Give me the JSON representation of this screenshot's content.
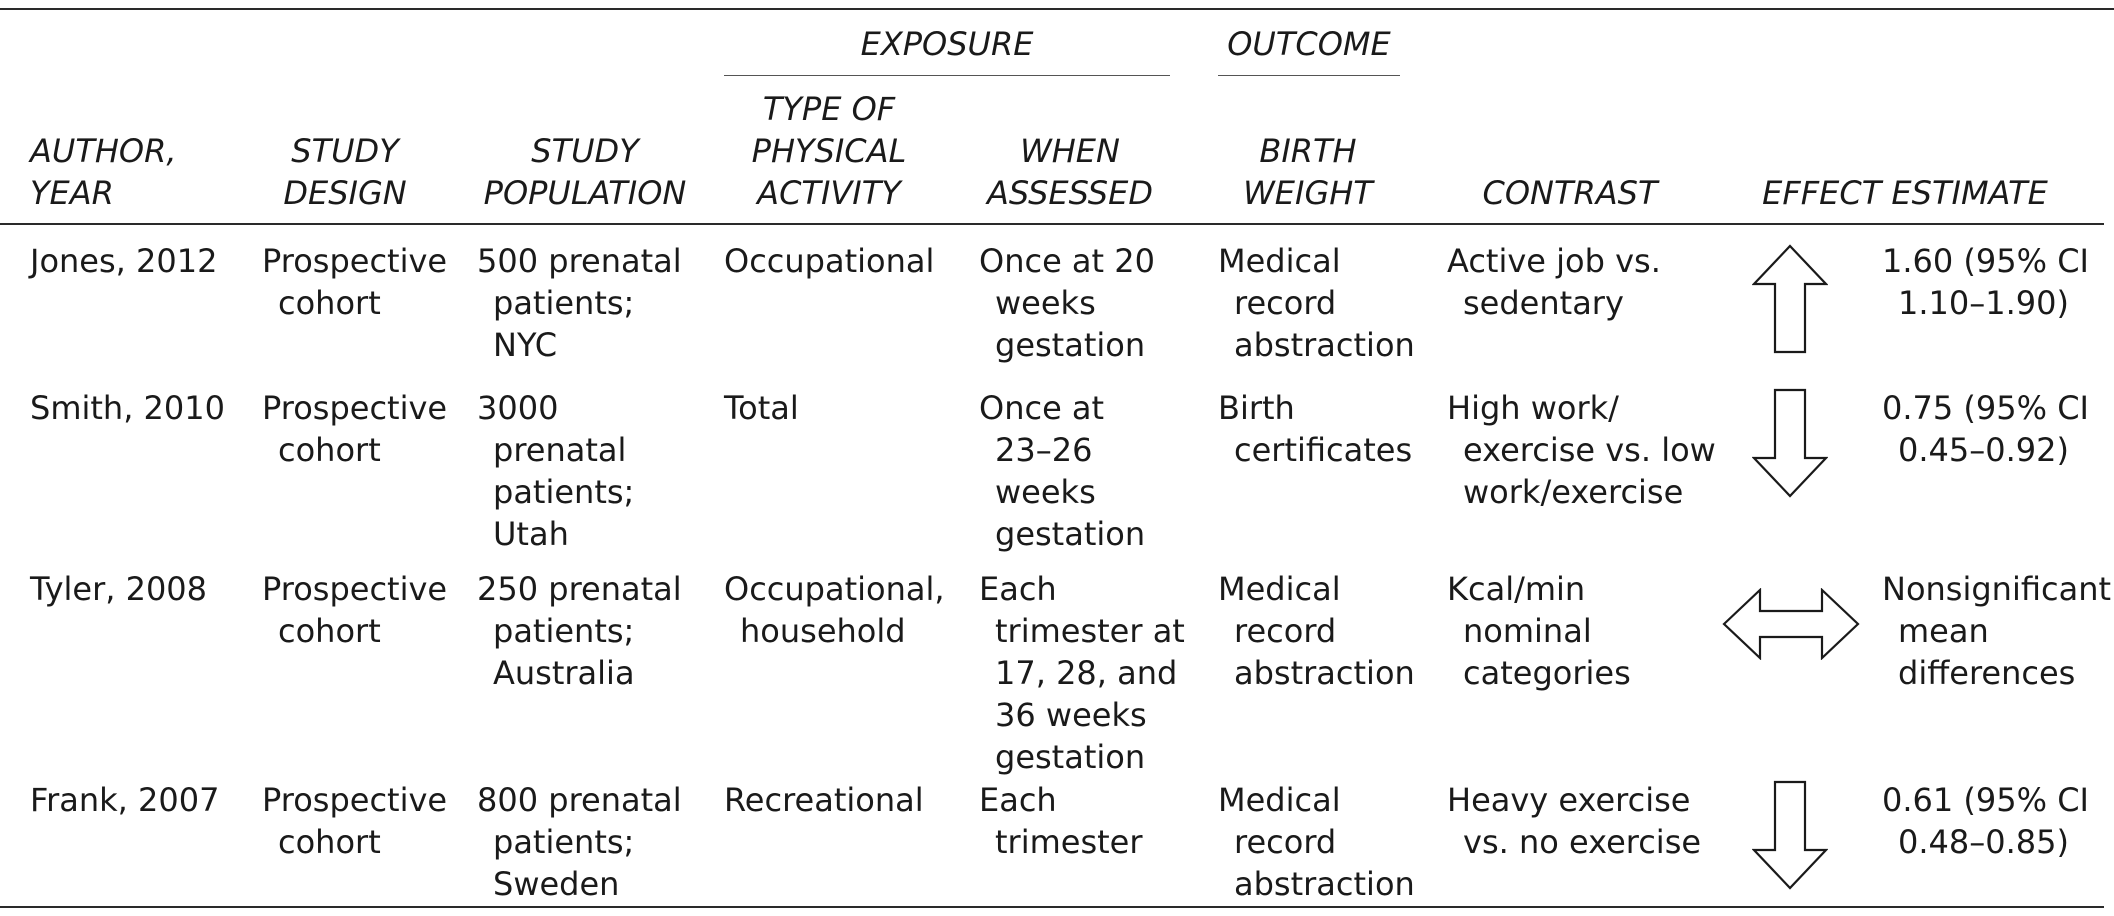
{
  "groups": {
    "exposure": "EXPOSURE",
    "outcome": "OUTCOME"
  },
  "headers": [
    {
      "key": "author",
      "lines": [
        "AUTHOR,",
        "YEAR"
      ]
    },
    {
      "key": "design",
      "lines": [
        "STUDY",
        "DESIGN"
      ]
    },
    {
      "key": "population",
      "lines": [
        "STUDY",
        "POPULATION"
      ]
    },
    {
      "key": "activity",
      "lines": [
        "TYPE OF",
        "PHYSICAL",
        "ACTIVITY"
      ]
    },
    {
      "key": "when",
      "lines": [
        "WHEN",
        "ASSESSED"
      ]
    },
    {
      "key": "birthweight",
      "lines": [
        "BIRTH",
        "WEIGHT"
      ]
    },
    {
      "key": "contrast",
      "lines": [
        "CONTRAST"
      ]
    },
    {
      "key": "effect",
      "lines": [
        "EFFECT ESTIMATE"
      ]
    }
  ],
  "rows": [
    {
      "author": [
        "Jones, 2012"
      ],
      "design": [
        "Prospective",
        "cohort"
      ],
      "population": [
        "500 prenatal",
        "patients;",
        "NYC"
      ],
      "activity": [
        "Occupational"
      ],
      "when": [
        "Once at 20",
        "weeks",
        "gestation"
      ],
      "birthweight": [
        "Medical",
        "record",
        "abstraction"
      ],
      "contrast": [
        "Active job vs.",
        "sedentary"
      ],
      "direction": "up",
      "estimate": [
        "1.60 (95% CI",
        "1.10–1.90)"
      ]
    },
    {
      "author": [
        "Smith, 2010"
      ],
      "design": [
        "Prospective",
        "cohort"
      ],
      "population": [
        "3000",
        "prenatal",
        "patients;",
        "Utah"
      ],
      "activity": [
        "Total"
      ],
      "when": [
        "Once at",
        "23–26",
        "weeks",
        "gestation"
      ],
      "birthweight": [
        "Birth",
        "certificates"
      ],
      "contrast": [
        "High work/",
        "exercise vs. low",
        "work/exercise"
      ],
      "direction": "down",
      "estimate": [
        "0.75 (95% CI",
        "0.45–0.92)"
      ]
    },
    {
      "author": [
        "Tyler, 2008"
      ],
      "design": [
        "Prospective",
        "cohort"
      ],
      "population": [
        "250 prenatal",
        "patients;",
        "Australia"
      ],
      "activity": [
        "Occupational,",
        "household"
      ],
      "when": [
        "Each",
        "trimester at",
        "17, 28, and",
        "36 weeks",
        "gestation"
      ],
      "birthweight": [
        "Medical",
        "record",
        "abstraction"
      ],
      "contrast": [
        "Kcal/min",
        "nominal",
        "categories"
      ],
      "direction": "both",
      "estimate": [
        "Nonsignificant",
        "mean",
        "differences"
      ]
    },
    {
      "author": [
        "Frank, 2007"
      ],
      "design": [
        "Prospective",
        "cohort"
      ],
      "population": [
        "800 prenatal",
        "patients;",
        "Sweden"
      ],
      "activity": [
        "Recreational"
      ],
      "when": [
        "Each",
        "trimester"
      ],
      "birthweight": [
        "Medical",
        "record",
        "abstraction"
      ],
      "contrast": [
        "Heavy exercise",
        "vs. no exercise"
      ],
      "direction": "down",
      "estimate": [
        "0.61 (95% CI",
        "0.48–0.85)"
      ]
    }
  ]
}
